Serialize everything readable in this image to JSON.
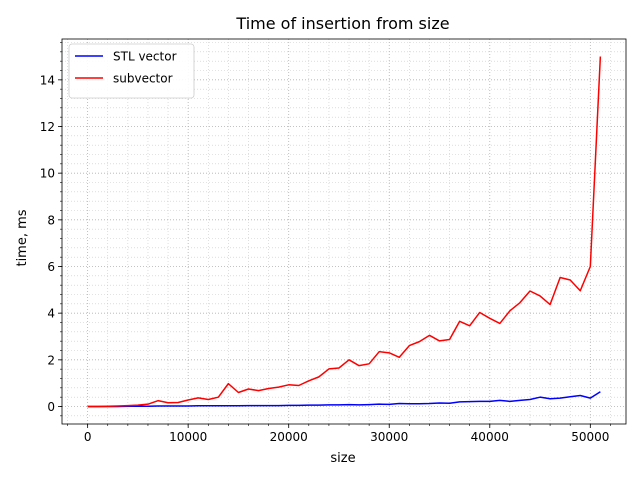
{
  "chart_data": {
    "type": "line",
    "title": "Time of insertion from size",
    "xlabel": "size",
    "ylabel": "time, ms",
    "xlim": [
      -2550,
      53550
    ],
    "ylim": [
      -0.75,
      15.75
    ],
    "xticks": [
      0,
      10000,
      20000,
      30000,
      40000,
      50000
    ],
    "xtick_labels": [
      "0",
      "10000",
      "20000",
      "30000",
      "40000",
      "50000"
    ],
    "yticks": [
      0,
      2,
      4,
      6,
      8,
      10,
      12,
      14
    ],
    "ytick_labels": [
      "0",
      "2",
      "4",
      "6",
      "8",
      "10",
      "12",
      "14"
    ],
    "x_minor_step": 2000,
    "y_minor_step": 0.4,
    "grid": true,
    "grid_style": "dotted, major and minor",
    "legend_position": "top-left",
    "x": [
      0,
      1000,
      2000,
      3000,
      4000,
      5000,
      6000,
      7000,
      8000,
      9000,
      10000,
      11000,
      12000,
      13000,
      14000,
      15000,
      16000,
      17000,
      18000,
      19000,
      20000,
      21000,
      22000,
      23000,
      24000,
      25000,
      26000,
      27000,
      28000,
      29000,
      30000,
      31000,
      32000,
      33000,
      34000,
      35000,
      36000,
      37000,
      38000,
      39000,
      40000,
      41000,
      42000,
      43000,
      44000,
      45000,
      46000,
      47000,
      48000,
      49000,
      50000,
      51000
    ],
    "series": [
      {
        "name": "STL vector",
        "color": "#0000ff",
        "values": [
          0.0,
          0.0,
          0.0,
          0.0,
          0.01,
          0.01,
          0.01,
          0.02,
          0.02,
          0.02,
          0.02,
          0.03,
          0.03,
          0.03,
          0.03,
          0.03,
          0.04,
          0.04,
          0.04,
          0.04,
          0.05,
          0.05,
          0.06,
          0.06,
          0.07,
          0.07,
          0.08,
          0.07,
          0.08,
          0.1,
          0.09,
          0.13,
          0.12,
          0.12,
          0.13,
          0.15,
          0.14,
          0.2,
          0.21,
          0.22,
          0.22,
          0.26,
          0.22,
          0.26,
          0.3,
          0.4,
          0.33,
          0.36,
          0.42,
          0.47,
          0.36,
          0.63
        ]
      },
      {
        "name": "subvector",
        "color": "#ff0000",
        "values": [
          0.0,
          0.0,
          0.01,
          0.02,
          0.04,
          0.06,
          0.1,
          0.25,
          0.16,
          0.17,
          0.28,
          0.37,
          0.3,
          0.4,
          0.98,
          0.6,
          0.75,
          0.68,
          0.77,
          0.83,
          0.93,
          0.9,
          1.1,
          1.27,
          1.61,
          1.65,
          2.0,
          1.75,
          1.83,
          2.35,
          2.3,
          2.11,
          2.61,
          2.78,
          3.05,
          2.81,
          2.87,
          3.65,
          3.46,
          4.03,
          3.78,
          3.56,
          4.1,
          4.45,
          4.95,
          4.74,
          4.37,
          5.53,
          5.42,
          4.96,
          6.0,
          15.0
        ]
      }
    ]
  }
}
